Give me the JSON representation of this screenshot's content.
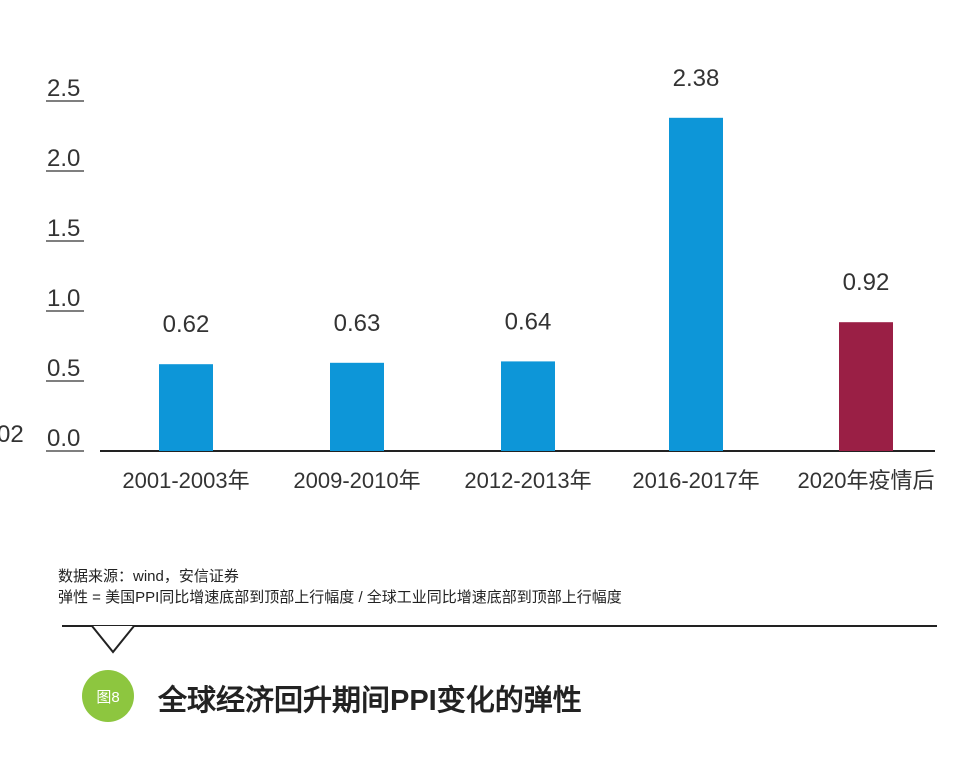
{
  "chart_data": {
    "type": "bar",
    "categories": [
      "2001-2003年",
      "2009-2010年",
      "2012-2013年",
      "2016-2017年",
      "2020年疫情后"
    ],
    "values": [
      0.62,
      0.63,
      0.64,
      2.38,
      0.92
    ],
    "value_labels": [
      "0.62",
      "0.63",
      "0.64",
      "2.38",
      "0.92"
    ],
    "bar_colors": [
      "#0d96d8",
      "#0d96d8",
      "#0d96d8",
      "#0d96d8",
      "#9a1f45"
    ],
    "yticks": [
      "0.0",
      "0.5",
      "1.0",
      "1.5",
      "2.0",
      "2.5"
    ],
    "ytick_values": [
      0,
      0.5,
      1.0,
      1.5,
      2.0,
      2.5
    ],
    "ylim": [
      0,
      2.5
    ],
    "left_edge_text": "02",
    "title": "",
    "xlabel": "",
    "ylabel": "",
    "grid": false
  },
  "notes": {
    "source": "数据来源：wind，安信证券",
    "definition": "弹性 = 美国PPI同比增速底部到顶部上行幅度 / 全球工业同比增速底部到顶部上行幅度"
  },
  "figure": {
    "badge": "图8",
    "badge_color": "#8dc63f",
    "caption": "全球经济回升期间PPI变化的弹性"
  }
}
